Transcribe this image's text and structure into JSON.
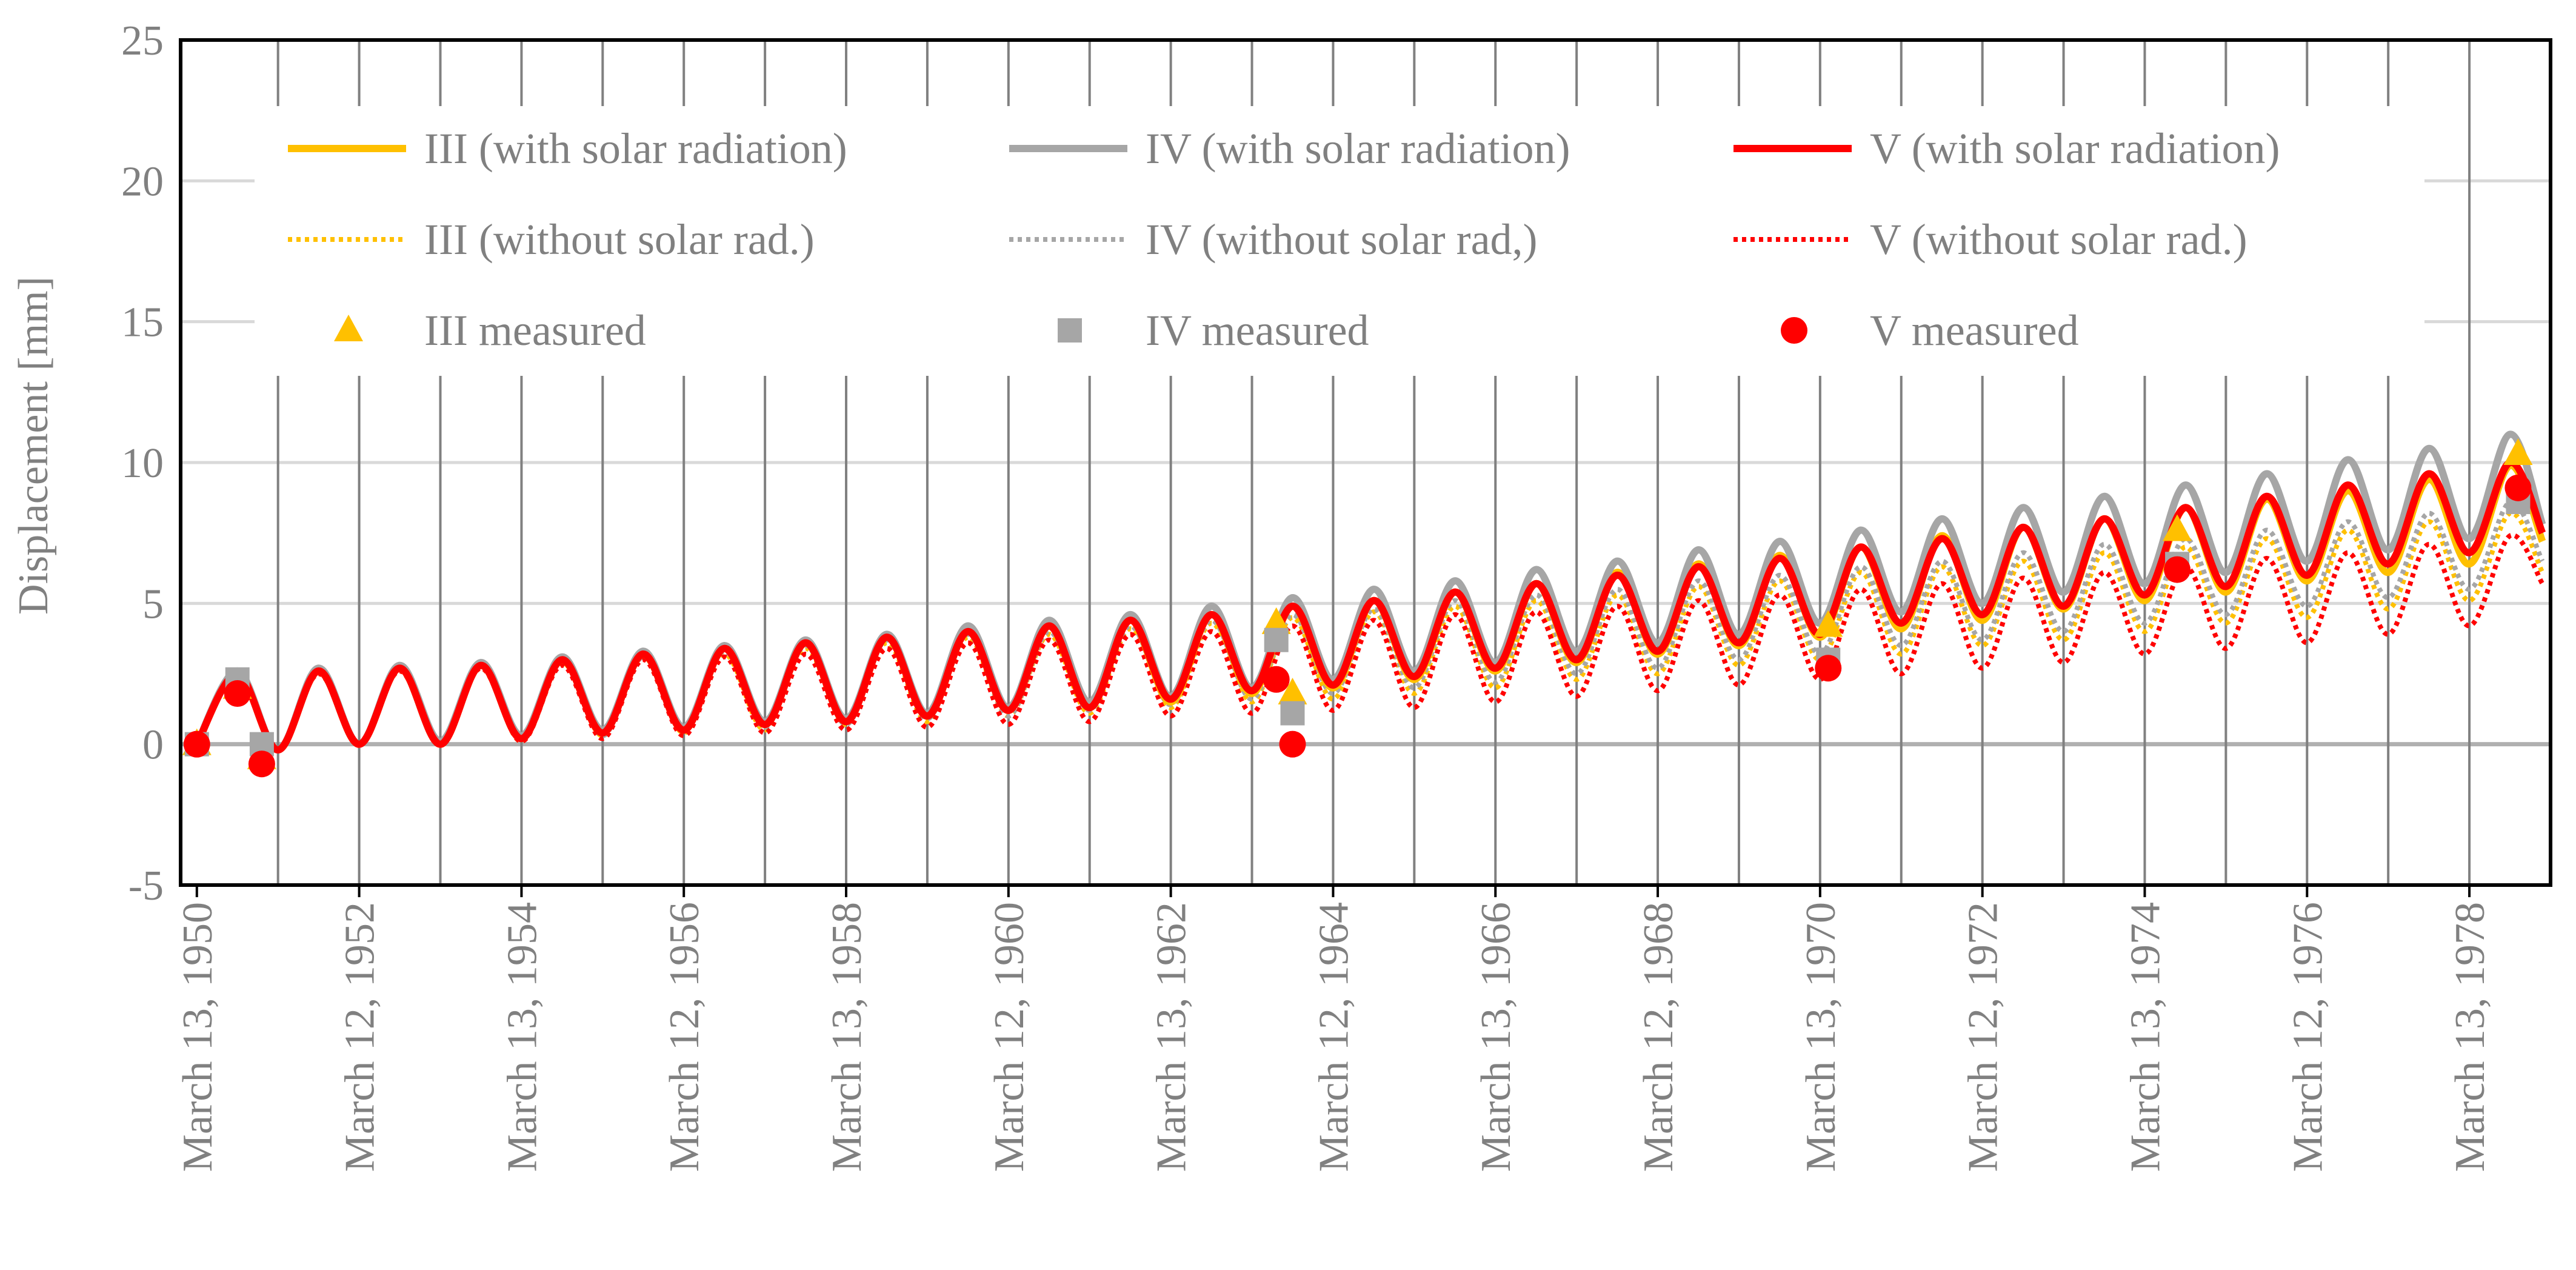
{
  "chart_data": {
    "type": "line",
    "title": "",
    "xlabel": "",
    "ylabel": "Displacement [mm]",
    "ylim": [
      -5,
      25
    ],
    "yticks": [
      -5,
      0,
      5,
      10,
      15,
      20,
      25
    ],
    "xlim": [
      1950.0,
      1979.2
    ],
    "x_tick_labels": [
      {
        "x": 1950.2,
        "label": "March 13, 1950"
      },
      {
        "x": 1952.2,
        "label": "March 12, 1952"
      },
      {
        "x": 1954.2,
        "label": "March 13, 1954"
      },
      {
        "x": 1956.2,
        "label": "March 12, 1956"
      },
      {
        "x": 1958.2,
        "label": "March 13, 1958"
      },
      {
        "x": 1960.2,
        "label": "March 12, 1960"
      },
      {
        "x": 1962.2,
        "label": "March 13, 1962"
      },
      {
        "x": 1964.2,
        "label": "March 12, 1964"
      },
      {
        "x": 1966.2,
        "label": "March 13, 1966"
      },
      {
        "x": 1968.2,
        "label": "March 12, 1968"
      },
      {
        "x": 1970.2,
        "label": "March 13, 1970"
      },
      {
        "x": 1972.2,
        "label": "March 12, 1972"
      },
      {
        "x": 1974.2,
        "label": "March 13, 1974"
      },
      {
        "x": 1976.2,
        "label": "March 12, 1976"
      },
      {
        "x": 1978.2,
        "label": "March 13, 1978"
      }
    ],
    "x_major_gridlines": [
      1951.2,
      1952.2,
      1953.2,
      1954.2,
      1955.2,
      1956.2,
      1957.2,
      1958.2,
      1959.2,
      1960.2,
      1961.2,
      1962.2,
      1963.2,
      1964.2,
      1965.2,
      1966.2,
      1967.2,
      1968.2,
      1969.2,
      1970.2,
      1971.2,
      1972.2,
      1973.2,
      1974.2,
      1975.2,
      1976.2,
      1977.2,
      1978.2,
      1979.2
    ],
    "legend_position": "top",
    "series": [
      {
        "name": "III (with solar radiation)",
        "style": "solid",
        "color": "#FFC000",
        "x": [
          1950.2,
          1950.7,
          1951.2,
          1951.7,
          1952.2,
          1952.7,
          1953.2,
          1953.7,
          1954.2,
          1954.7,
          1955.2,
          1955.7,
          1956.2,
          1956.7,
          1957.2,
          1957.7,
          1958.2,
          1958.7,
          1959.2,
          1959.7,
          1960.2,
          1960.7,
          1961.2,
          1961.7,
          1962.2,
          1962.7,
          1963.2,
          1963.7,
          1964.2,
          1964.7,
          1965.2,
          1965.7,
          1966.2,
          1966.7,
          1967.2,
          1967.7,
          1968.2,
          1968.7,
          1969.2,
          1969.7,
          1970.2,
          1970.7,
          1971.2,
          1971.7,
          1972.2,
          1972.7,
          1973.2,
          1973.7,
          1974.2,
          1974.7,
          1975.2,
          1975.7,
          1976.2,
          1976.7,
          1977.2,
          1977.7,
          1978.2,
          1978.7,
          1979.1
        ],
        "y": [
          0.0,
          2.5,
          -0.2,
          2.6,
          0.0,
          2.7,
          0.0,
          2.8,
          0.2,
          3.0,
          0.4,
          3.2,
          0.5,
          3.4,
          0.7,
          3.6,
          0.8,
          3.8,
          1.0,
          4.0,
          1.2,
          4.2,
          1.3,
          4.4,
          1.5,
          4.6,
          1.8,
          4.9,
          2.0,
          5.1,
          2.3,
          5.4,
          2.6,
          5.7,
          2.9,
          6.1,
          3.2,
          6.4,
          3.5,
          6.7,
          3.8,
          7.0,
          4.1,
          7.4,
          4.4,
          7.7,
          4.8,
          8.0,
          5.1,
          8.4,
          5.4,
          8.7,
          5.8,
          9.0,
          6.1,
          9.4,
          6.4,
          9.9,
          7.2
        ]
      },
      {
        "name": "IV (with solar radiation)",
        "style": "solid",
        "color": "#A6A6A6",
        "x": [
          1950.2,
          1950.7,
          1951.2,
          1951.7,
          1952.2,
          1952.7,
          1953.2,
          1953.7,
          1954.2,
          1954.7,
          1955.2,
          1955.7,
          1956.2,
          1956.7,
          1957.2,
          1957.7,
          1958.2,
          1958.7,
          1959.2,
          1959.7,
          1960.2,
          1960.7,
          1961.2,
          1961.7,
          1962.2,
          1962.7,
          1963.2,
          1963.7,
          1964.2,
          1964.7,
          1965.2,
          1965.7,
          1966.2,
          1966.7,
          1967.2,
          1967.7,
          1968.2,
          1968.7,
          1969.2,
          1969.7,
          1970.2,
          1970.7,
          1971.2,
          1971.7,
          1972.2,
          1972.7,
          1973.2,
          1973.7,
          1974.2,
          1974.7,
          1975.2,
          1975.7,
          1976.2,
          1976.7,
          1977.2,
          1977.7,
          1978.2,
          1978.7,
          1979.1
        ],
        "y": [
          0.0,
          2.6,
          -0.2,
          2.7,
          0.0,
          2.8,
          0.1,
          2.9,
          0.3,
          3.1,
          0.5,
          3.3,
          0.6,
          3.5,
          0.8,
          3.7,
          0.9,
          3.9,
          1.1,
          4.2,
          1.3,
          4.4,
          1.5,
          4.6,
          1.7,
          4.9,
          2.0,
          5.2,
          2.3,
          5.5,
          2.6,
          5.8,
          2.9,
          6.2,
          3.3,
          6.5,
          3.6,
          6.9,
          3.9,
          7.2,
          4.3,
          7.6,
          4.7,
          8.0,
          5.0,
          8.4,
          5.4,
          8.8,
          5.7,
          9.2,
          6.1,
          9.6,
          6.5,
          10.1,
          6.9,
          10.5,
          7.3,
          11.0,
          7.8
        ]
      },
      {
        "name": "V (with solar radiation)",
        "style": "solid",
        "color": "#FF0000",
        "x": [
          1950.2,
          1950.7,
          1951.2,
          1951.7,
          1952.2,
          1952.7,
          1953.2,
          1953.7,
          1954.2,
          1954.7,
          1955.2,
          1955.7,
          1956.2,
          1956.7,
          1957.2,
          1957.7,
          1958.2,
          1958.7,
          1959.2,
          1959.7,
          1960.2,
          1960.7,
          1961.2,
          1961.7,
          1962.2,
          1962.7,
          1963.2,
          1963.7,
          1964.2,
          1964.7,
          1965.2,
          1965.7,
          1966.2,
          1966.7,
          1967.2,
          1967.7,
          1968.2,
          1968.7,
          1969.2,
          1969.7,
          1970.2,
          1970.7,
          1971.2,
          1971.7,
          1972.2,
          1972.7,
          1973.2,
          1973.7,
          1974.2,
          1974.7,
          1975.2,
          1975.7,
          1976.2,
          1976.7,
          1977.2,
          1977.7,
          1978.2,
          1978.7,
          1979.1
        ],
        "y": [
          0.0,
          2.5,
          -0.2,
          2.6,
          0.0,
          2.7,
          0.0,
          2.8,
          0.2,
          3.0,
          0.4,
          3.2,
          0.5,
          3.4,
          0.7,
          3.6,
          0.8,
          3.8,
          1.0,
          4.0,
          1.2,
          4.2,
          1.3,
          4.4,
          1.6,
          4.6,
          1.9,
          4.9,
          2.1,
          5.1,
          2.4,
          5.4,
          2.7,
          5.7,
          3.0,
          6.0,
          3.3,
          6.3,
          3.6,
          6.6,
          3.9,
          7.0,
          4.3,
          7.3,
          4.6,
          7.7,
          4.9,
          8.0,
          5.3,
          8.4,
          5.6,
          8.8,
          6.0,
          9.2,
          6.4,
          9.6,
          6.8,
          10.0,
          7.5
        ]
      },
      {
        "name": "III (without solar rad.)",
        "style": "dotted",
        "color": "#FFC000",
        "x": [
          1950.2,
          1950.7,
          1951.2,
          1951.7,
          1952.2,
          1952.7,
          1953.2,
          1953.7,
          1954.2,
          1954.7,
          1955.2,
          1955.7,
          1956.2,
          1956.7,
          1957.2,
          1957.7,
          1958.2,
          1958.7,
          1959.2,
          1959.7,
          1960.2,
          1960.7,
          1961.2,
          1961.7,
          1962.2,
          1962.7,
          1963.2,
          1963.7,
          1964.2,
          1964.7,
          1965.2,
          1965.7,
          1966.2,
          1966.7,
          1967.2,
          1967.7,
          1968.2,
          1968.7,
          1969.2,
          1969.7,
          1970.2,
          1970.7,
          1971.2,
          1971.7,
          1972.2,
          1972.7,
          1973.2,
          1973.7,
          1974.2,
          1974.7,
          1975.2,
          1975.7,
          1976.2,
          1976.7,
          1977.2,
          1977.7,
          1978.2,
          1978.7,
          1979.1
        ],
        "y": [
          0.0,
          2.4,
          -0.2,
          2.5,
          0.0,
          2.6,
          0.0,
          2.7,
          0.1,
          2.9,
          0.3,
          3.1,
          0.4,
          3.2,
          0.5,
          3.4,
          0.7,
          3.6,
          0.8,
          3.8,
          1.0,
          3.9,
          1.1,
          4.1,
          1.3,
          4.3,
          1.5,
          4.5,
          1.6,
          4.7,
          1.8,
          4.9,
          2.0,
          5.1,
          2.3,
          5.3,
          2.5,
          5.6,
          2.8,
          5.8,
          3.0,
          6.1,
          3.2,
          6.3,
          3.5,
          6.5,
          3.7,
          6.8,
          4.0,
          7.0,
          4.3,
          7.3,
          4.5,
          7.6,
          4.8,
          7.9,
          5.1,
          8.2,
          6.1
        ]
      },
      {
        "name": "IV (without solar rad,)",
        "style": "dotted",
        "color": "#A6A6A6",
        "x": [
          1950.2,
          1950.7,
          1951.2,
          1951.7,
          1952.2,
          1952.7,
          1953.2,
          1953.7,
          1954.2,
          1954.7,
          1955.2,
          1955.7,
          1956.2,
          1956.7,
          1957.2,
          1957.7,
          1958.2,
          1958.7,
          1959.2,
          1959.7,
          1960.2,
          1960.7,
          1961.2,
          1961.7,
          1962.2,
          1962.7,
          1963.2,
          1963.7,
          1964.2,
          1964.7,
          1965.2,
          1965.7,
          1966.2,
          1966.7,
          1967.2,
          1967.7,
          1968.2,
          1968.7,
          1969.2,
          1969.7,
          1970.2,
          1970.7,
          1971.2,
          1971.7,
          1972.2,
          1972.7,
          1973.2,
          1973.7,
          1974.2,
          1974.7,
          1975.2,
          1975.7,
          1976.2,
          1976.7,
          1977.2,
          1977.7,
          1978.2,
          1978.7,
          1979.1
        ],
        "y": [
          0.0,
          2.5,
          -0.2,
          2.6,
          0.0,
          2.7,
          0.0,
          2.8,
          0.2,
          3.0,
          0.3,
          3.1,
          0.5,
          3.3,
          0.6,
          3.5,
          0.7,
          3.7,
          0.9,
          3.9,
          1.0,
          4.0,
          1.2,
          4.2,
          1.4,
          4.4,
          1.6,
          4.6,
          1.8,
          4.8,
          2.0,
          5.1,
          2.2,
          5.3,
          2.5,
          5.5,
          2.7,
          5.8,
          3.0,
          6.0,
          3.2,
          6.3,
          3.5,
          6.5,
          3.7,
          6.8,
          4.0,
          7.1,
          4.3,
          7.3,
          4.6,
          7.6,
          4.9,
          7.9,
          5.2,
          8.2,
          5.5,
          8.6,
          6.5
        ]
      },
      {
        "name": "V (without solar rad.)",
        "style": "dotted",
        "color": "#FF0000",
        "x": [
          1950.2,
          1950.7,
          1951.2,
          1951.7,
          1952.2,
          1952.7,
          1953.2,
          1953.7,
          1954.2,
          1954.7,
          1955.2,
          1955.7,
          1956.2,
          1956.7,
          1957.2,
          1957.7,
          1958.2,
          1958.7,
          1959.2,
          1959.7,
          1960.2,
          1960.7,
          1961.2,
          1961.7,
          1962.2,
          1962.7,
          1963.2,
          1963.7,
          1964.2,
          1964.7,
          1965.2,
          1965.7,
          1966.2,
          1966.7,
          1967.2,
          1967.7,
          1968.2,
          1968.7,
          1969.2,
          1969.7,
          1970.2,
          1970.7,
          1971.2,
          1971.7,
          1972.2,
          1972.7,
          1973.2,
          1973.7,
          1974.2,
          1974.7,
          1975.2,
          1975.7,
          1976.2,
          1976.7,
          1977.2,
          1977.7,
          1978.2,
          1978.7,
          1979.1
        ],
        "y": [
          0.0,
          2.4,
          -0.2,
          2.5,
          0.0,
          2.6,
          0.0,
          2.7,
          0.1,
          2.8,
          0.2,
          3.0,
          0.3,
          3.1,
          0.4,
          3.2,
          0.5,
          3.4,
          0.6,
          3.6,
          0.7,
          3.7,
          0.8,
          3.9,
          1.0,
          4.0,
          1.1,
          4.2,
          1.2,
          4.4,
          1.3,
          4.6,
          1.5,
          4.7,
          1.7,
          4.9,
          1.9,
          5.1,
          2.1,
          5.3,
          2.3,
          5.5,
          2.5,
          5.7,
          2.7,
          5.9,
          2.9,
          6.1,
          3.2,
          6.3,
          3.4,
          6.6,
          3.6,
          6.8,
          3.9,
          7.1,
          4.2,
          7.4,
          5.7
        ]
      },
      {
        "name": "III measured",
        "style": "marker",
        "marker": "triangle",
        "color": "#FFC000",
        "x": [
          1950.2,
          1950.7,
          1951.0,
          1963.5,
          1963.7,
          1970.3,
          1974.6,
          1978.8
        ],
        "y": [
          0.0,
          2.0,
          -0.5,
          4.3,
          1.8,
          4.2,
          7.6,
          10.3
        ]
      },
      {
        "name": "IV measured",
        "style": "marker",
        "marker": "square",
        "color": "#A6A6A6",
        "x": [
          1950.2,
          1950.7,
          1951.0,
          1963.5,
          1963.7,
          1970.3,
          1974.6,
          1978.8
        ],
        "y": [
          0.0,
          2.3,
          0.0,
          3.7,
          1.1,
          3.0,
          6.4,
          8.6
        ]
      },
      {
        "name": "V measured",
        "style": "marker",
        "marker": "circle",
        "color": "#FF0000",
        "x": [
          1950.2,
          1950.7,
          1951.0,
          1963.5,
          1963.7,
          1970.3,
          1974.6,
          1978.8
        ],
        "y": [
          0.0,
          1.8,
          -0.7,
          2.3,
          0.0,
          2.7,
          6.2,
          9.1
        ]
      }
    ]
  }
}
